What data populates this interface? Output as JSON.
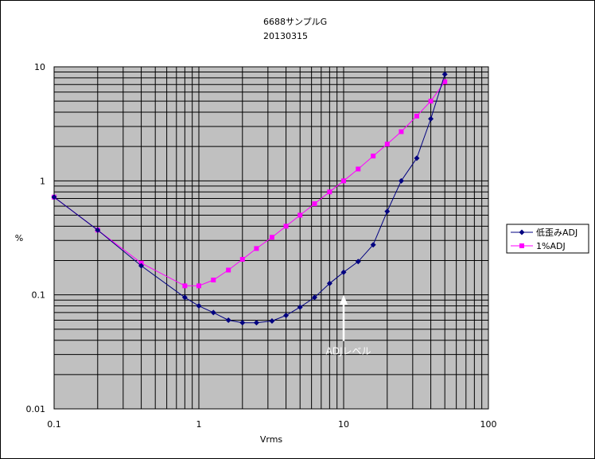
{
  "chart_data": {
    "type": "line",
    "title": "6688サンプルG",
    "subtitle": "20130315",
    "xlabel": "Vrms",
    "ylabel": "%",
    "xscale": "log",
    "yscale": "log",
    "xlim": [
      0.1,
      100
    ],
    "ylim": [
      0.01,
      10
    ],
    "x_tick_labels": [
      "0.1",
      "1",
      "10",
      "100"
    ],
    "y_tick_labels": [
      "0.01",
      "0.1",
      "1",
      "10"
    ],
    "grid": true,
    "legend_position": "right",
    "plot_background": "#c0c0c0",
    "series": [
      {
        "name": "低歪みADJ",
        "color": "#000080",
        "marker": "diamond",
        "x": [
          0.1,
          0.2,
          0.4,
          0.8,
          1.0,
          1.26,
          1.6,
          2.0,
          2.5,
          3.2,
          4.0,
          5.0,
          6.3,
          8.0,
          10.0,
          12.6,
          16.0,
          20.0,
          25.0,
          32.0,
          40.0,
          50.0
        ],
        "y": [
          0.72,
          0.37,
          0.18,
          0.095,
          0.08,
          0.07,
          0.06,
          0.057,
          0.057,
          0.059,
          0.066,
          0.078,
          0.095,
          0.126,
          0.158,
          0.196,
          0.275,
          0.54,
          1.0,
          1.58,
          3.5,
          8.6
        ]
      },
      {
        "name": "1%ADJ",
        "color": "#ff00ff",
        "marker": "square",
        "x": [
          0.1,
          0.2,
          0.4,
          0.8,
          1.0,
          1.26,
          1.6,
          2.0,
          2.5,
          3.2,
          4.0,
          5.0,
          6.3,
          8.0,
          10.0,
          12.6,
          16.0,
          20.0,
          25.0,
          32.0,
          40.0,
          50.0
        ],
        "y": [
          0.72,
          0.37,
          0.19,
          0.12,
          0.12,
          0.135,
          0.165,
          0.205,
          0.255,
          0.32,
          0.4,
          0.5,
          0.63,
          0.8,
          1.0,
          1.27,
          1.65,
          2.1,
          2.7,
          3.7,
          5.0,
          7.4
        ]
      }
    ],
    "annotations": [
      {
        "text": "ADJレベル",
        "x": 10.0,
        "y": 0.1,
        "arrow": "up",
        "color": "#ffffff"
      }
    ]
  }
}
